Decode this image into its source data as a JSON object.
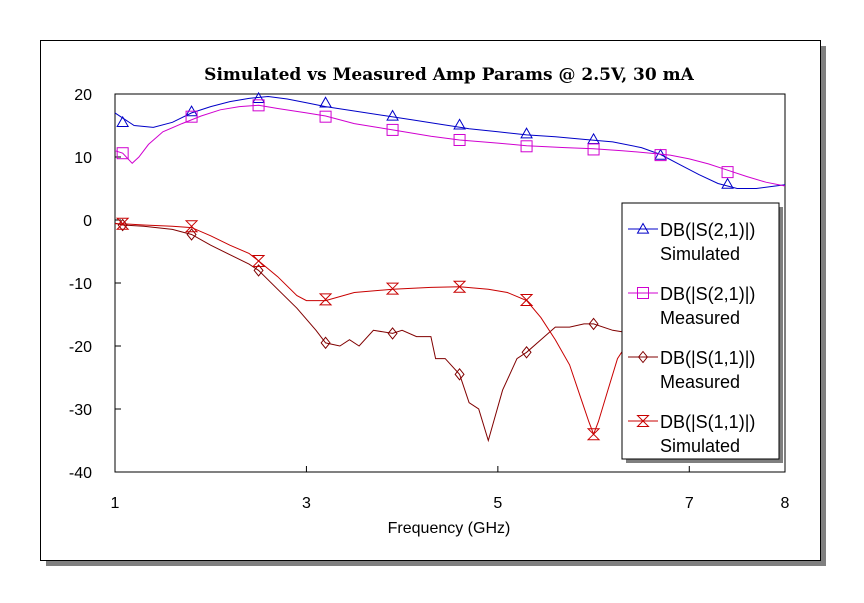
{
  "chart_data": {
    "type": "line",
    "title": "Simulated vs Measured Amp Params  @ 2.5V, 30 mA",
    "xlabel": "Frequency (GHz)",
    "ylabel": "",
    "xlim": [
      1,
      8
    ],
    "ylim": [
      -40,
      20
    ],
    "xticks": [
      1,
      3,
      5,
      7,
      8
    ],
    "yticks": [
      20,
      10,
      0,
      -10,
      -20,
      -30,
      -40
    ],
    "grid": false,
    "legend_position": "right",
    "series": [
      {
        "name": [
          "DB(|S(2,1)|)",
          "Simulated"
        ],
        "color": "#0000c8",
        "marker": "triangle",
        "x": [
          1.0,
          1.2,
          1.4,
          1.6,
          1.8,
          2.0,
          2.2,
          2.4,
          2.6,
          2.8,
          3.0,
          3.2,
          3.5,
          3.8,
          4.1,
          4.4,
          4.7,
          5.0,
          5.3,
          5.6,
          5.9,
          6.2,
          6.5,
          6.7,
          6.9,
          7.1,
          7.3,
          7.5,
          7.7,
          7.85,
          8.0
        ],
        "y": [
          17,
          15,
          14.7,
          15.5,
          17,
          18,
          18.8,
          19.3,
          19.6,
          19.2,
          18.6,
          18,
          17.3,
          16.6,
          15.9,
          15.2,
          14.5,
          14,
          13.5,
          13.2,
          12.8,
          12.4,
          11.5,
          10.4,
          8.8,
          7.2,
          5.8,
          5,
          5,
          5.3,
          5.6
        ],
        "marker_x": [
          1.08,
          1.8,
          2.5,
          3.2,
          3.9,
          4.6,
          5.3,
          6.0,
          6.7,
          7.4
        ],
        "marker_y": [
          15.5,
          17.2,
          19.3,
          18.6,
          16.5,
          15.1,
          13.7,
          12.8,
          10.3,
          5.7
        ]
      },
      {
        "name": [
          "DB(|S(2,1)|)",
          "Measured"
        ],
        "color": "#d000d0",
        "marker": "square",
        "x": [
          1.0,
          1.08,
          1.18,
          1.25,
          1.35,
          1.5,
          1.7,
          1.9,
          2.1,
          2.3,
          2.5,
          2.7,
          3.0,
          3.2,
          3.5,
          3.9,
          4.3,
          4.6,
          5.0,
          5.3,
          5.7,
          6.0,
          6.3,
          6.6,
          6.8,
          7.0,
          7.2,
          7.4,
          7.6,
          7.8,
          8.0
        ],
        "y": [
          11,
          10.6,
          9,
          10,
          12,
          14,
          15.3,
          16.5,
          17.5,
          18,
          18.2,
          17.7,
          17,
          16.5,
          15.3,
          14.3,
          13.3,
          12.7,
          12.2,
          11.8,
          11.5,
          11.3,
          11,
          10.6,
          10.3,
          9.7,
          8.9,
          7.9,
          6.9,
          6,
          5.4
        ],
        "marker_x": [
          1.08,
          1.8,
          2.5,
          3.2,
          3.9,
          4.6,
          5.3,
          6.0,
          6.7,
          7.4
        ],
        "marker_y": [
          10.6,
          16.4,
          18.2,
          16.4,
          14.3,
          12.7,
          11.7,
          11.2,
          10.3,
          7.6
        ]
      },
      {
        "name": [
          "DB(|S(1,1)|)",
          "Measured"
        ],
        "color": "#800000",
        "marker": "diamond",
        "x": [
          1.0,
          1.08,
          1.3,
          1.6,
          1.8,
          2.0,
          2.2,
          2.4,
          2.5,
          2.7,
          2.9,
          3.1,
          3.2,
          3.35,
          3.45,
          3.55,
          3.7,
          3.9,
          4.0,
          4.15,
          4.3,
          4.35,
          4.45,
          4.6,
          4.7,
          4.8,
          4.9,
          5.05,
          5.2,
          5.3,
          5.45,
          5.6,
          5.75,
          5.9,
          6.0,
          6.2,
          6.4
        ],
        "y": [
          -0.5,
          -0.8,
          -1,
          -1.5,
          -2.3,
          -4,
          -5.5,
          -7,
          -8,
          -11,
          -14,
          -17.5,
          -19.5,
          -20,
          -19,
          -20,
          -17.5,
          -18,
          -17.5,
          -18.5,
          -18.5,
          -22,
          -22,
          -24.5,
          -29,
          -30,
          -35,
          -27,
          -22,
          -21,
          -19,
          -17,
          -17,
          -16.5,
          -16.5,
          -17.5,
          -18
        ]
      },
      {
        "name": [
          "DB(|S(1,1)|)",
          "Simulated"
        ],
        "color": "#c80000",
        "marker": "hourglass",
        "x": [
          1.0,
          1.08,
          1.3,
          1.6,
          1.8,
          2.0,
          2.2,
          2.4,
          2.5,
          2.7,
          2.9,
          3.0,
          3.2,
          3.5,
          3.9,
          4.3,
          4.6,
          4.9,
          5.1,
          5.3,
          5.45,
          5.6,
          5.75,
          5.85,
          5.95,
          6.0,
          6.05,
          6.15,
          6.25,
          6.4
        ],
        "y": [
          -0.6,
          -0.6,
          -0.8,
          -1,
          -1.2,
          -2.5,
          -4,
          -5.3,
          -6.5,
          -9,
          -12,
          -12.8,
          -12.8,
          -11.5,
          -11,
          -10.7,
          -10.6,
          -11,
          -11.5,
          -12.8,
          -15.5,
          -19,
          -23,
          -27.5,
          -32,
          -34,
          -32,
          -27,
          -22,
          -18.5
        ],
        "marker_x": [
          1.08,
          1.8,
          2.5,
          3.2,
          3.9,
          4.6,
          5.3,
          6.0
        ],
        "marker_y": [
          -0.6,
          -1.0,
          -6.5,
          -12.6,
          -10.9,
          -10.6,
          -12.7,
          -34.0
        ]
      }
    ]
  }
}
